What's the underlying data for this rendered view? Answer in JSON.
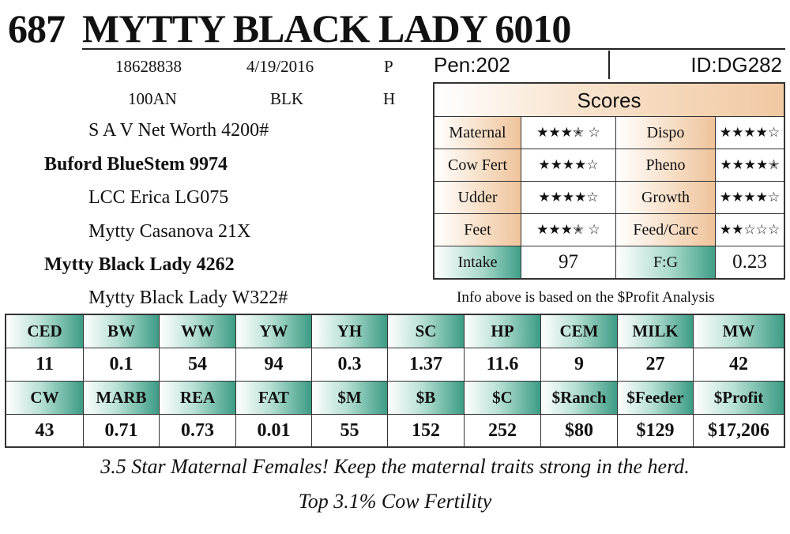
{
  "header": {
    "lot": "687",
    "name": "MYTTY BLACK LADY 6010"
  },
  "info": {
    "reg_no": "18628838",
    "birth_date": "4/19/2016",
    "code1": "P",
    "breed": "100AN",
    "color": "BLK",
    "code2": "H"
  },
  "pedigree": {
    "sire_sire": "S A V Net Worth 4200#",
    "sire": "Buford BlueStem 9974",
    "sire_dam": "LCC Erica LG075",
    "dam_sire": "Mytty Casanova 21X",
    "dam": "Mytty Black Lady 4262",
    "dam_dam": "Mytty Black Lady W322#"
  },
  "pen": "Pen:202",
  "id": "ID:DG282",
  "scores": {
    "title": "Scores",
    "rows": [
      {
        "l_label": "Maternal",
        "l_value": "★★★✭ ☆",
        "r_label": "Dispo",
        "r_value": "★★★★☆"
      },
      {
        "l_label": "Cow Fert",
        "l_value": "★★★★☆",
        "r_label": "Pheno",
        "r_value": "★★★★✭"
      },
      {
        "l_label": "Udder",
        "l_value": "★★★★☆",
        "r_label": "Growth",
        "r_value": "★★★★☆"
      },
      {
        "l_label": "Feet",
        "l_value": "★★★✭ ☆",
        "r_label": "Feed/Carc",
        "r_value": "★★☆☆☆"
      },
      {
        "l_label": "Intake",
        "l_value": "97",
        "r_label": "F:G",
        "r_value": "0.23"
      }
    ],
    "colors": {
      "label_tan": "#efc39c",
      "label_teal": "#3f9f88"
    }
  },
  "note": "Info above is based on the $Profit Analysis",
  "epd": {
    "row1": {
      "headers": [
        "CED",
        "BW",
        "WW",
        "YW",
        "YH",
        "SC",
        "HP",
        "CEM",
        "MILK",
        "MW"
      ],
      "values": [
        "11",
        "0.1",
        "54",
        "94",
        "0.3",
        "1.37",
        "11.6",
        "9",
        "27",
        "42"
      ]
    },
    "row2": {
      "headers": [
        "CW",
        "MARB",
        "REA",
        "FAT",
        "$M",
        "$B",
        "$C",
        "$Ranch",
        "$Feeder",
        "$Profit"
      ],
      "values": [
        "43",
        "0.71",
        "0.73",
        "0.01",
        "55",
        "152",
        "252",
        "$80",
        "$129",
        "$17,206"
      ]
    },
    "header_color": "#3c9c85"
  },
  "footer": {
    "line1": "3.5 Star Maternal Females! Keep the maternal traits strong in the herd.",
    "line2": "Top 3.1% Cow Fertility"
  }
}
